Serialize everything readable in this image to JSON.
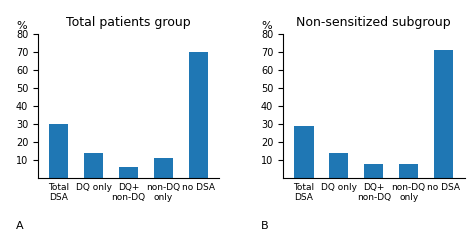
{
  "chart_data": [
    {
      "type": "bar",
      "title": "Total patients group",
      "categories": [
        "Total\nDSA",
        "DQ only",
        "DQ+\nnon-DQ",
        "non-DQ\nonly",
        "no DSA"
      ],
      "values": [
        30,
        14,
        6,
        11,
        70
      ],
      "ylabel": "%",
      "annotations": [
        "A"
      ],
      "ylim": [
        0,
        80
      ],
      "yticks": [
        10,
        20,
        30,
        40,
        50,
        60,
        70,
        80
      ],
      "grid": false
    },
    {
      "type": "bar",
      "title": "Non-sensitized subgroup",
      "categories": [
        "Total\nDSA",
        "DQ only",
        "DQ+\nnon-DQ",
        "non-DQ\nonly",
        "no DSA"
      ],
      "values": [
        29,
        14,
        8,
        8,
        71
      ],
      "ylabel": "%",
      "annotations": [
        "B"
      ],
      "ylim": [
        0,
        80
      ],
      "yticks": [
        10,
        20,
        30,
        40,
        50,
        60,
        70,
        80
      ],
      "grid": false
    }
  ]
}
